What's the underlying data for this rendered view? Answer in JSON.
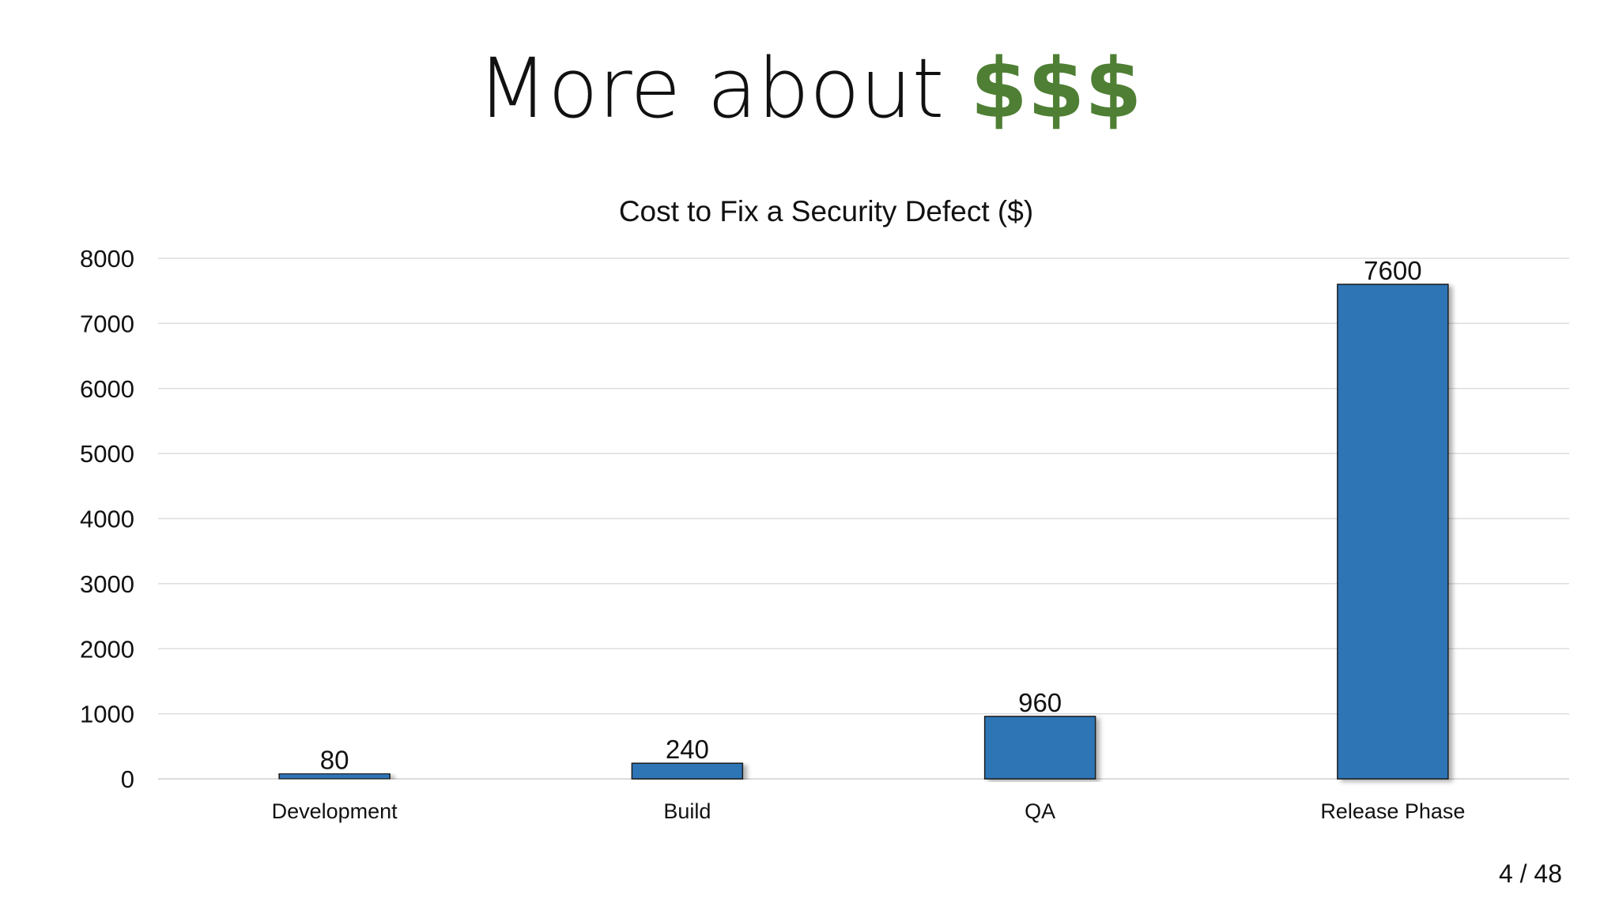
{
  "slide": {
    "title_prefix": "More about ",
    "title_accent": "$$$",
    "accent_color": "#4f7f34",
    "page_number": "4 / 48"
  },
  "chart_data": {
    "type": "bar",
    "title": "Cost to Fix a Security Defect ($)",
    "categories": [
      "Development",
      "Build",
      "QA",
      "Release Phase"
    ],
    "values": [
      80,
      240,
      960,
      7600
    ],
    "data_labels": [
      "80",
      "240",
      "960",
      "7600"
    ],
    "ylim": [
      0,
      8000
    ],
    "yticks": [
      0,
      1000,
      2000,
      3000,
      4000,
      5000,
      6000,
      7000,
      8000
    ],
    "grid": true,
    "legend": "none",
    "bar_color": "#2e75b6"
  }
}
